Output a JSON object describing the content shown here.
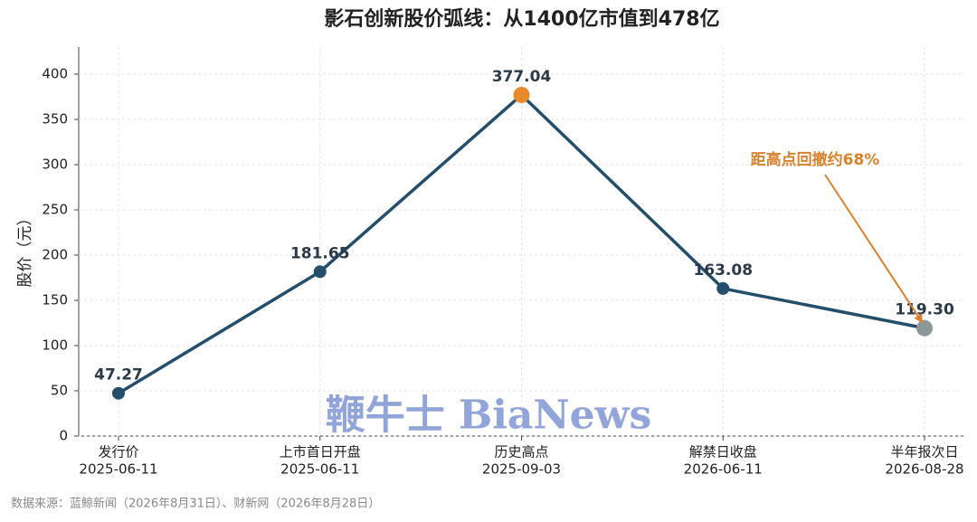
{
  "chart_data": {
    "type": "line",
    "title": "影石创新股价弧线：从1400亿市值到478亿",
    "y_label": "股价（元）",
    "categories": [
      "发行价",
      "上市首日开盘",
      "历史高点",
      "解禁日收盘",
      "半年报次日"
    ],
    "dates": [
      "2025-06-11",
      "2025-06-11",
      "2025-09-03",
      "2026-06-11",
      "2026-08-28"
    ],
    "series": [
      {
        "name": "股价",
        "color": "#234e6c",
        "values": [
          47.27,
          181.65,
          377.04,
          163.08,
          119.3
        ],
        "value_labels": [
          "47.27",
          "181.65",
          "377.04",
          "163.08",
          "119.30"
        ],
        "point_colors": [
          "#234e6c",
          "#234e6c",
          "#e8892b",
          "#234e6c",
          "#8c9799"
        ]
      }
    ],
    "ylim": [
      0,
      430
    ],
    "yticks": [
      0,
      50,
      100,
      150,
      200,
      250,
      300,
      350,
      400
    ],
    "grid": true,
    "annotation": {
      "text": "距高点回撤约68%",
      "color": "#d9822b",
      "point": 4
    },
    "watermark": "鞭牛士 BiaNews",
    "source": "数据来源：蓝鲸新闻（2026年8月31日）、财新网（2026年8月28日）"
  }
}
